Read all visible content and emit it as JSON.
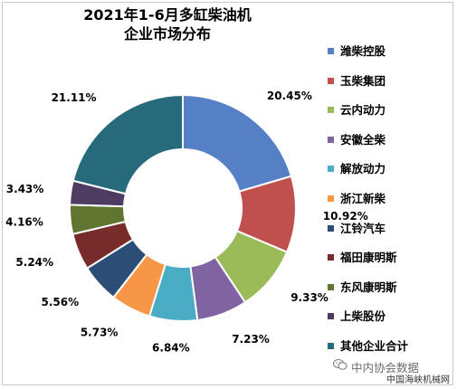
{
  "chart_data": {
    "type": "pie",
    "variant": "donut",
    "title_lines": [
      "2021年1-6月多缸柴油机",
      "企业市场分布"
    ],
    "legend_placement": "right",
    "series": [
      {
        "name": "潍柴控股",
        "value": 20.45,
        "label": "20.45%",
        "color": "#5580c5"
      },
      {
        "name": "玉柴集团",
        "value": 10.92,
        "label": "10.92%",
        "color": "#c0504d"
      },
      {
        "name": "云内动力",
        "value": 9.33,
        "label": "9.33%",
        "color": "#9bbb59"
      },
      {
        "name": "安徽全柴",
        "value": 7.23,
        "label": "7.23%",
        "color": "#8064a2"
      },
      {
        "name": "解放动力",
        "value": 6.84,
        "label": "6.84%",
        "color": "#4bacc6"
      },
      {
        "name": "浙江新柴",
        "value": 5.73,
        "label": "5.73%",
        "color": "#f79646"
      },
      {
        "name": "江铃汽车",
        "value": 5.56,
        "label": "5.56%",
        "color": "#2c4d75"
      },
      {
        "name": "福田康明斯",
        "value": 5.24,
        "label": "5.24%",
        "color": "#772c2a"
      },
      {
        "name": "东风康明斯",
        "value": 4.16,
        "label": "4.16%",
        "color": "#5f7530"
      },
      {
        "name": "上柴股份",
        "value": 3.43,
        "label": "3.43%",
        "color": "#4d3b62"
      },
      {
        "name": "其他企业合计",
        "value": 21.11,
        "label": "21.11%",
        "color": "#276a7c"
      }
    ]
  },
  "watermark": {
    "text": "中内协会数据",
    "icon": "wechat-icon"
  },
  "source": "中国海峡机械网"
}
